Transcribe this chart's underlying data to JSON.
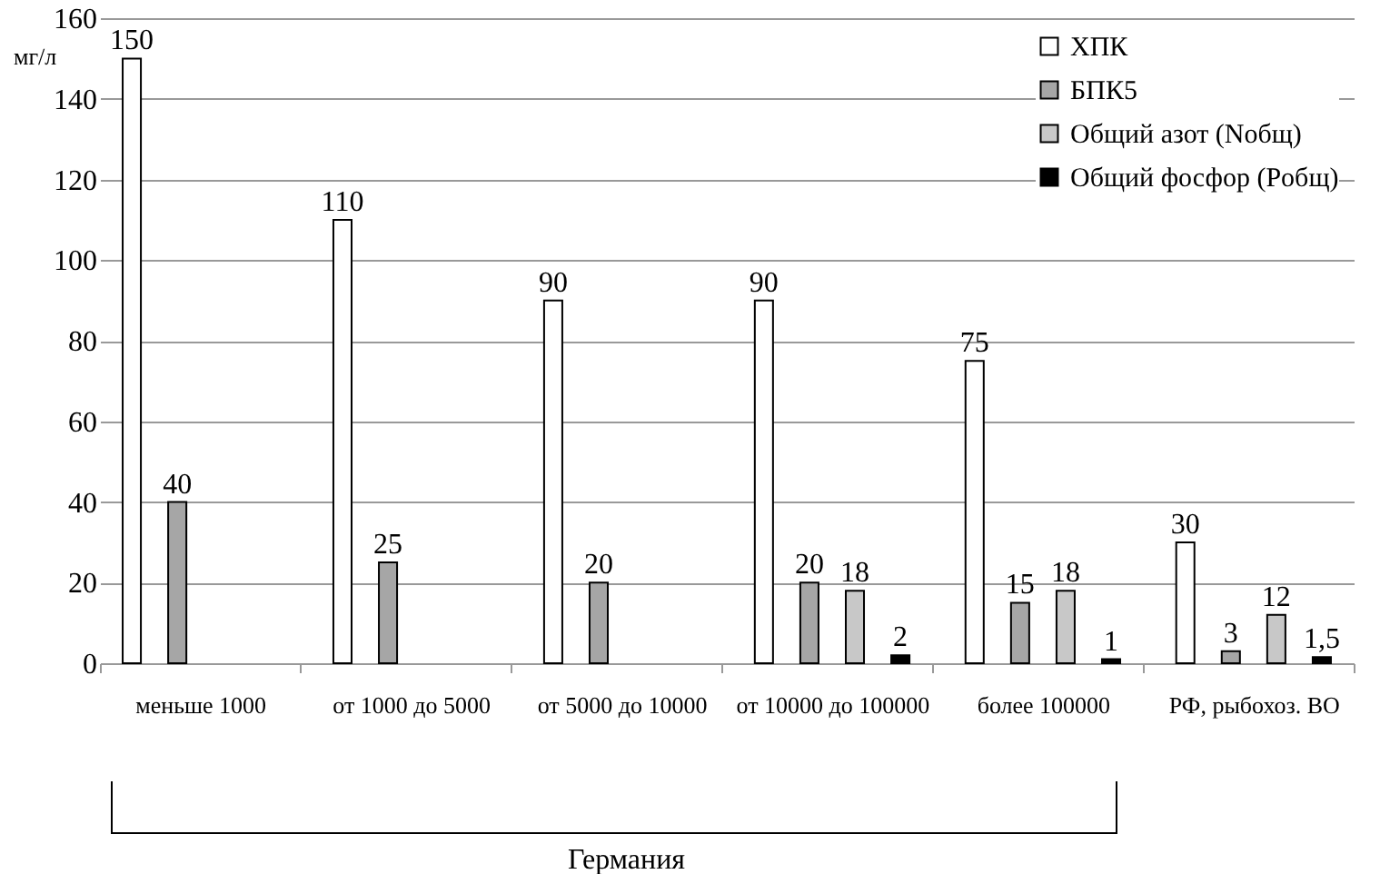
{
  "chart_data": {
    "type": "bar",
    "ylabel": "мг/л",
    "categories": [
      "меньше 1000",
      "от 1000 до 5000",
      "от 5000 до 10000",
      "от 10000 до 100000",
      "более 100000",
      "РФ, рыбохоз. ВО"
    ],
    "series": [
      {
        "name": "ХПК",
        "color": "#ffffff",
        "values": [
          150,
          110,
          90,
          90,
          75,
          30
        ],
        "value_labels": [
          "150",
          "110",
          "90",
          "90",
          "75",
          "30"
        ]
      },
      {
        "name": "БПК5",
        "color": "#a6a6a6",
        "values": [
          40,
          25,
          20,
          20,
          15,
          3
        ],
        "value_labels": [
          "40",
          "25",
          "20",
          "20",
          "15",
          "3"
        ]
      },
      {
        "name": "Общий азот (Nобщ)",
        "color": "#c8c8c8",
        "values": [
          null,
          null,
          null,
          18,
          18,
          12
        ],
        "value_labels": [
          null,
          null,
          null,
          "18",
          "18",
          "12"
        ]
      },
      {
        "name": "Общий фосфор (Pобщ)",
        "color": "#000000",
        "values": [
          null,
          null,
          null,
          2,
          1,
          1.5
        ],
        "value_labels": [
          null,
          null,
          null,
          "2",
          "1",
          "1,5"
        ]
      }
    ],
    "ylim": [
      0,
      160
    ],
    "yticks": [
      0,
      20,
      40,
      60,
      80,
      100,
      120,
      140,
      160
    ],
    "grid": "y",
    "legend": "top right",
    "annotations": [
      "Германия"
    ]
  }
}
